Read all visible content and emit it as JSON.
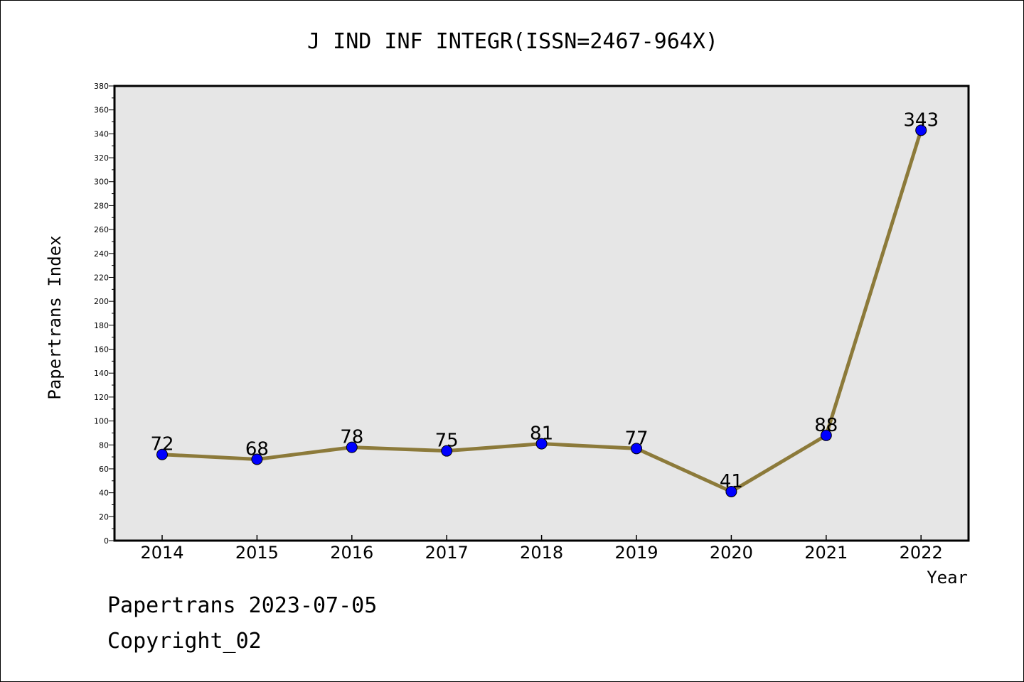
{
  "chart_data": {
    "type": "line",
    "title": "J IND INF INTEGR(ISSN=2467-964X)",
    "xlabel": "Year",
    "ylabel": "Papertrans Index",
    "categories": [
      "2014",
      "2015",
      "2016",
      "2017",
      "2018",
      "2019",
      "2020",
      "2021",
      "2022"
    ],
    "series": [
      {
        "values": [
          72,
          68,
          78,
          75,
          81,
          77,
          41,
          88,
          343
        ]
      }
    ],
    "data_labels": [
      "72",
      "68",
      "78",
      "75",
      "81",
      "77",
      "41",
      "88",
      "343"
    ],
    "ylim": [
      0,
      380
    ],
    "yticks": [
      0,
      20,
      40,
      60,
      80,
      100,
      120,
      140,
      160,
      180,
      200,
      220,
      240,
      260,
      280,
      300,
      320,
      340,
      360,
      380
    ],
    "grid": false,
    "legend": "none",
    "colors": {
      "line": "#8c7a3a",
      "marker": "#0000ff",
      "plot_background": "#e6e6e6"
    }
  },
  "footer": {
    "line1": "Papertrans 2023-07-05",
    "line2": "Copyright_02"
  }
}
